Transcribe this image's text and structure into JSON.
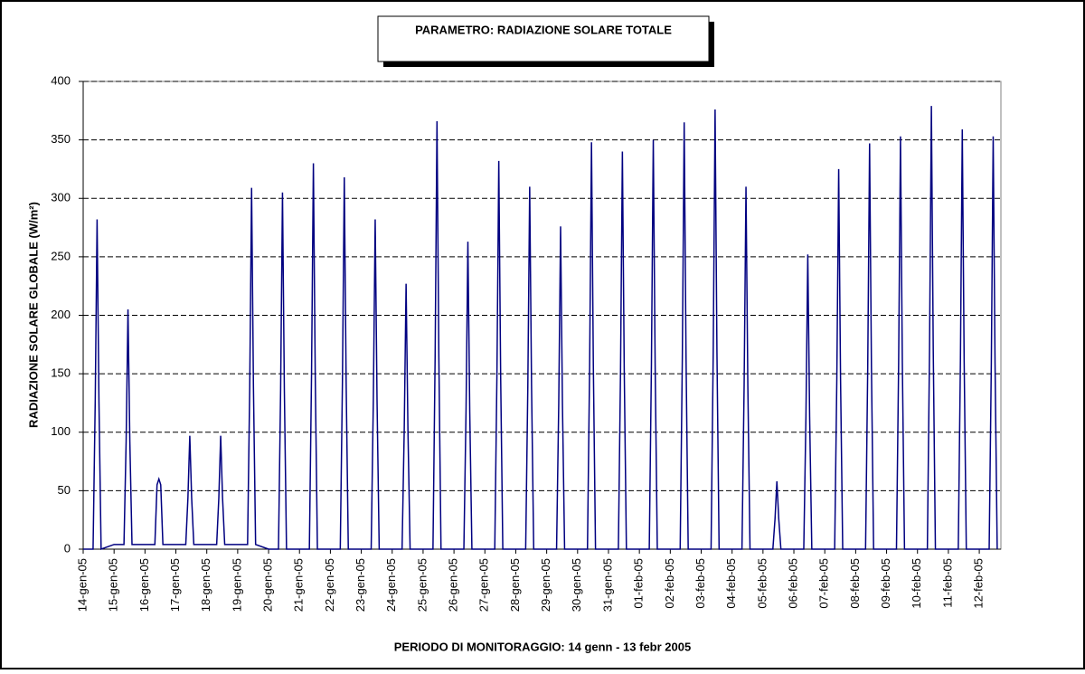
{
  "chart_data": {
    "type": "line",
    "title": "PARAMETRO: RADIAZIONE SOLARE TOTALE",
    "x_label": "PERIODO DI MONITORAGGIO: 14 genn - 13 febr 2005",
    "y_label": "RADIAZIONE SOLARE GLOBALE (W/m²)",
    "xlim": [
      0,
      29.7
    ],
    "ylim": [
      0,
      400
    ],
    "yticks": [
      0,
      50,
      100,
      150,
      200,
      250,
      300,
      350,
      400
    ],
    "xticks": [
      {
        "value": 0,
        "label": "14-gen-05"
      },
      {
        "value": 1,
        "label": "15-gen-05"
      },
      {
        "value": 2,
        "label": "16-gen-05"
      },
      {
        "value": 3,
        "label": "17-gen-05"
      },
      {
        "value": 4,
        "label": "18-gen-05"
      },
      {
        "value": 5,
        "label": "19-gen-05"
      },
      {
        "value": 6,
        "label": "20-gen-05"
      },
      {
        "value": 7,
        "label": "21-gen-05"
      },
      {
        "value": 8,
        "label": "22-gen-05"
      },
      {
        "value": 9,
        "label": "23-gen-05"
      },
      {
        "value": 10,
        "label": "24-gen-05"
      },
      {
        "value": 11,
        "label": "25-gen-05"
      },
      {
        "value": 12,
        "label": "26-gen-05"
      },
      {
        "value": 13,
        "label": "27-gen-05"
      },
      {
        "value": 14,
        "label": "28-gen-05"
      },
      {
        "value": 15,
        "label": "29-gen-05"
      },
      {
        "value": 16,
        "label": "30-gen-05"
      },
      {
        "value": 17,
        "label": "31-gen-05"
      },
      {
        "value": 18,
        "label": "01-feb-05"
      },
      {
        "value": 19,
        "label": "02-feb-05"
      },
      {
        "value": 20,
        "label": "03-feb-05"
      },
      {
        "value": 21,
        "label": "04-feb-05"
      },
      {
        "value": 22,
        "label": "05-feb-05"
      },
      {
        "value": 23,
        "label": "06-feb-05"
      },
      {
        "value": 24,
        "label": "07-feb-05"
      },
      {
        "value": 25,
        "label": "08-feb-05"
      },
      {
        "value": 26,
        "label": "09-feb-05"
      },
      {
        "value": 27,
        "label": "10-feb-05"
      },
      {
        "value": 28,
        "label": "11-feb-05"
      },
      {
        "value": 29,
        "label": "12-feb-05"
      }
    ],
    "grid": true,
    "x": [
      0,
      0.32,
      0.39,
      0.45,
      0.51,
      0.58,
      1,
      1.32,
      1.39,
      1.45,
      1.51,
      1.58,
      2,
      2.32,
      2.39,
      2.45,
      2.51,
      2.58,
      3,
      3.32,
      3.39,
      3.45,
      3.51,
      3.58,
      4,
      4.32,
      4.39,
      4.45,
      4.51,
      4.58,
      5,
      5.32,
      5.39,
      5.45,
      5.51,
      5.58,
      6,
      6.32,
      6.39,
      6.45,
      6.51,
      6.58,
      7,
      7.32,
      7.39,
      7.45,
      7.51,
      7.58,
      8,
      8.32,
      8.39,
      8.45,
      8.51,
      8.58,
      9,
      9.32,
      9.39,
      9.45,
      9.51,
      9.58,
      10,
      10.32,
      10.39,
      10.45,
      10.51,
      10.58,
      11,
      11.32,
      11.39,
      11.45,
      11.51,
      11.58,
      12,
      12.32,
      12.39,
      12.45,
      12.51,
      12.58,
      13,
      13.32,
      13.39,
      13.45,
      13.51,
      13.58,
      14,
      14.32,
      14.39,
      14.45,
      14.51,
      14.58,
      15,
      15.32,
      15.39,
      15.45,
      15.51,
      15.58,
      16,
      16.32,
      16.39,
      16.45,
      16.51,
      16.58,
      17,
      17.32,
      17.39,
      17.45,
      17.51,
      17.58,
      18,
      18.32,
      18.39,
      18.45,
      18.51,
      18.58,
      19,
      19.32,
      19.39,
      19.45,
      19.51,
      19.58,
      20,
      20.32,
      20.39,
      20.45,
      20.51,
      20.58,
      21,
      21.32,
      21.39,
      21.45,
      21.51,
      21.58,
      22,
      22.32,
      22.39,
      22.45,
      22.51,
      22.58,
      23,
      23.32,
      23.39,
      23.45,
      23.51,
      23.58,
      24,
      24.32,
      24.39,
      24.45,
      24.51,
      24.58,
      25,
      25.32,
      25.39,
      25.45,
      25.51,
      25.58,
      26,
      26.32,
      26.39,
      26.45,
      26.51,
      26.58,
      27,
      27.32,
      27.39,
      27.45,
      27.51,
      27.58,
      28,
      28.32,
      28.39,
      28.45,
      28.51,
      28.58,
      29,
      29.32,
      29.39,
      29.45,
      29.51,
      29.58
    ],
    "series": [
      {
        "color": "#000080",
        "values": [
          0,
          0,
          127,
          282,
          127,
          0,
          4,
          4,
          92,
          205,
          92,
          4,
          4,
          4,
          55,
          60,
          55,
          4,
          4,
          4,
          44,
          97,
          44,
          4,
          4,
          4,
          44,
          97,
          44,
          4,
          4,
          4,
          139,
          309,
          139,
          4,
          0,
          0,
          137,
          305,
          137,
          0,
          0,
          0,
          149,
          330,
          149,
          0,
          0,
          0,
          143,
          318,
          143,
          0,
          0,
          0,
          127,
          282,
          127,
          0,
          0,
          0,
          102,
          227,
          102,
          0,
          0,
          0,
          165,
          366,
          165,
          0,
          0,
          0,
          118,
          263,
          118,
          0,
          0,
          0,
          149,
          332,
          149,
          0,
          0,
          0,
          140,
          310,
          140,
          0,
          0,
          0,
          124,
          276,
          124,
          0,
          0,
          0,
          157,
          348,
          157,
          0,
          0,
          0,
          153,
          340,
          153,
          0,
          0,
          0,
          158,
          350,
          158,
          0,
          0,
          0,
          164,
          365,
          164,
          0,
          0,
          0,
          169,
          376,
          169,
          0,
          0,
          0,
          140,
          310,
          140,
          0,
          0,
          0,
          26,
          58,
          26,
          0,
          0,
          0,
          113,
          252,
          113,
          0,
          0,
          0,
          146,
          325,
          146,
          0,
          0,
          0,
          156,
          347,
          156,
          0,
          0,
          0,
          159,
          353,
          159,
          0,
          0,
          0,
          171,
          379,
          171,
          0,
          0,
          0,
          162,
          359,
          162,
          0,
          0,
          0,
          159,
          353,
          159,
          0
        ]
      }
    ]
  }
}
